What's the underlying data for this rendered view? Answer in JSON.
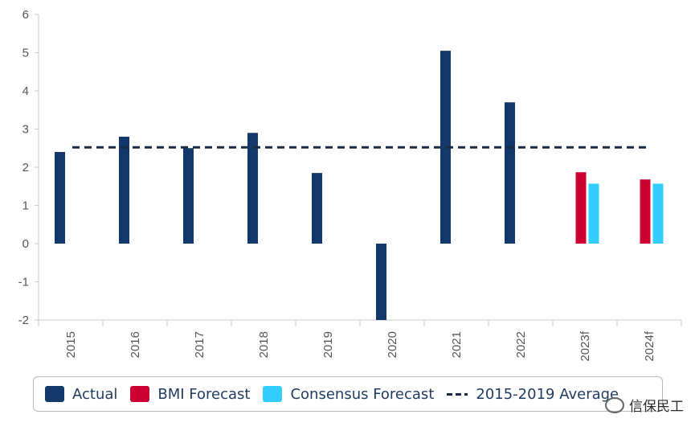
{
  "colors": {
    "actual": "#14386a",
    "bmi_forecast": "#cc0033",
    "consensus_forecast": "#33ccff",
    "average_line": "#1b2a44",
    "axis": "#c8c8c8",
    "tick_text": "#555555"
  },
  "chart_data": {
    "type": "bar",
    "categories": [
      "2015",
      "2016",
      "2017",
      "2018",
      "2019",
      "2020",
      "2021",
      "2022",
      "2023f",
      "2024f"
    ],
    "series": [
      {
        "name": "Actual",
        "color": "#14386a",
        "values": [
          2.4,
          2.8,
          2.5,
          2.9,
          1.85,
          -2.0,
          5.05,
          3.7,
          null,
          null
        ]
      },
      {
        "name": "BMI Forecast",
        "color": "#cc0033",
        "values": [
          null,
          null,
          null,
          null,
          null,
          null,
          null,
          null,
          1.87,
          1.68
        ]
      },
      {
        "name": "Consensus Forecast",
        "color": "#33ccff",
        "values": [
          null,
          null,
          null,
          null,
          null,
          null,
          null,
          null,
          1.57,
          1.57
        ]
      }
    ],
    "reference_line": {
      "name": "2015-2019 Average",
      "value": 2.52,
      "style": "dashed"
    },
    "yticks": [
      "6",
      "5",
      "4",
      "3",
      "2",
      "1",
      "0",
      "-1",
      "-2"
    ],
    "ylim": [
      -2,
      6
    ],
    "grid": false,
    "legend_position": "bottom"
  },
  "legend": {
    "actual": "Actual",
    "bmi": "BMI Forecast",
    "consensus": "Consensus Forecast",
    "average": "2015-2019 Average"
  },
  "watermark": {
    "text": "信保民工",
    "icon": "wechat-icon"
  }
}
